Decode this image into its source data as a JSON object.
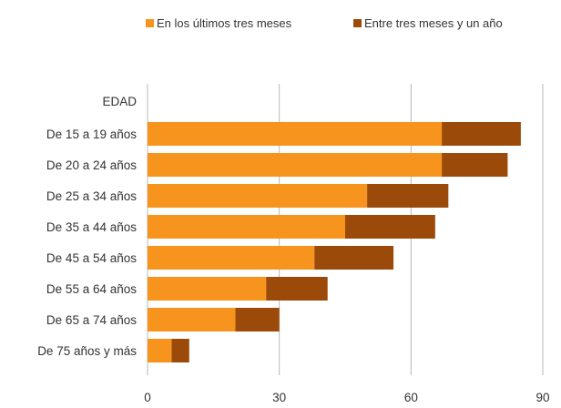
{
  "chart_data": {
    "type": "bar",
    "orientation": "horizontal",
    "stacked": true,
    "title": "",
    "xlabel": "",
    "ylabel": "",
    "category_header": "EDAD",
    "categories": [
      "De 15 a 19 años",
      "De 20 a 24 años",
      "De 25 a 34 años",
      "De 35 a 44 años",
      "De 45 a 54 años",
      "De 55 a 64 años",
      "De 65 a 74 años",
      "De 75 años y más"
    ],
    "series": [
      {
        "name": "En los últimos tres meses",
        "color": "#f7941d",
        "values": [
          67,
          67,
          50,
          45,
          38,
          27,
          20,
          5.5
        ]
      },
      {
        "name": "Entre tres meses y un año",
        "color": "#9c4a0a",
        "values": [
          18,
          15,
          18.5,
          20.5,
          18,
          14,
          10,
          4
        ]
      }
    ],
    "xlim": [
      0,
      90
    ],
    "xticks": [
      0,
      30,
      60,
      90
    ],
    "grid": true,
    "legend_position": "top"
  }
}
